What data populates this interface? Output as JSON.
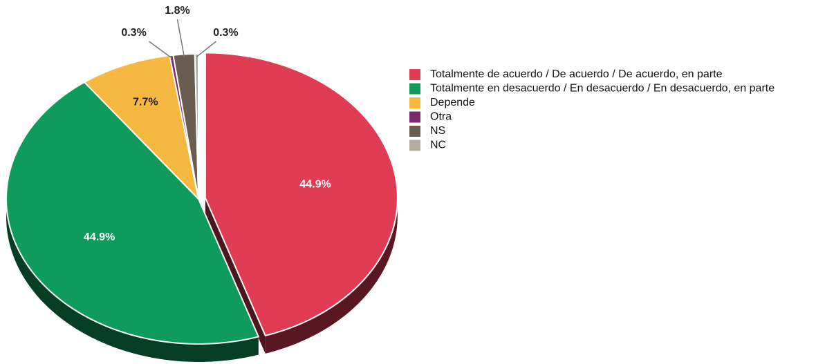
{
  "chart_data": {
    "type": "pie",
    "categories": [
      "Totalmente de acuerdo  / De acuerdo / De acuerdo, en parte",
      "Totalmente en desacuerdo / En desacuerdo / En desacuerdo, en parte",
      "Depende",
      "Otra",
      "NS",
      "NC"
    ],
    "values": [
      44.9,
      44.9,
      7.7,
      0.3,
      1.8,
      0.3
    ],
    "value_labels": [
      "44.9%",
      "44.9%",
      "7.7%",
      "0.3%",
      "1.8%",
      "0.3%"
    ],
    "colors": [
      "#e03c54",
      "#0f9b5c",
      "#f7b841",
      "#7a2a6c",
      "#6a5d50",
      "#b4aca1"
    ]
  }
}
